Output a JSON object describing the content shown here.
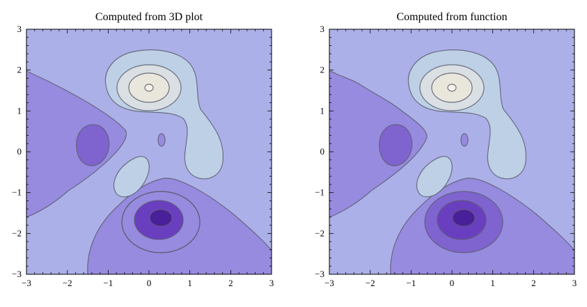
{
  "colors": {
    "level_1": "#4a1f9a",
    "level_2": "#6a3fbf",
    "level_3": "#7f64cf",
    "level_4": "#968bdf",
    "level_5": "#acb0e8",
    "level_6": "#bdd0e6",
    "level_7": "#e9e6dc",
    "line": "#5c5c6e",
    "frame": "#000000"
  },
  "chart_data": [
    {
      "type": "contour",
      "title": "Computed from 3D plot",
      "xlabel": "",
      "ylabel": "",
      "xlim": [
        -3,
        3
      ],
      "ylim": [
        -3,
        3
      ],
      "xticks": [
        -3,
        -2,
        -1,
        0,
        1,
        2,
        3
      ],
      "yticks": [
        -3,
        -2,
        -1,
        0,
        1,
        2,
        3
      ],
      "x_tick_labels": [
        "−3",
        "−2",
        "−1",
        "0",
        "1",
        "2",
        "3"
      ],
      "y_tick_labels": [
        "−3",
        "−2",
        "−1",
        "0",
        "1",
        "2",
        "3"
      ],
      "contour_levels": 6,
      "features": [
        {
          "kind": "maximum",
          "x": 0.0,
          "y": 1.58
        },
        {
          "kind": "minimum",
          "x": 0.3,
          "y": -1.65
        },
        {
          "kind": "local minimum",
          "x": -1.35,
          "y": 0.2
        },
        {
          "kind": "local minimum",
          "x": 0.3,
          "y": 0.3
        }
      ]
    },
    {
      "type": "contour",
      "title": "Computed from function",
      "xlabel": "",
      "ylabel": "",
      "xlim": [
        -3,
        3
      ],
      "ylim": [
        -3,
        3
      ],
      "xticks": [
        -3,
        -2,
        -1,
        0,
        1,
        2,
        3
      ],
      "yticks": [
        -3,
        -2,
        -1,
        0,
        1,
        2,
        3
      ],
      "x_tick_labels": [
        "−3",
        "−2",
        "−1",
        "0",
        "1",
        "2",
        "3"
      ],
      "y_tick_labels": [
        "−3",
        "−2",
        "−1",
        "0",
        "1",
        "2",
        "3"
      ],
      "contour_levels": 6,
      "features": [
        {
          "kind": "maximum",
          "x": 0.0,
          "y": 1.58
        },
        {
          "kind": "minimum",
          "x": 0.3,
          "y": -1.65
        },
        {
          "kind": "local minimum",
          "x": -1.35,
          "y": 0.2
        },
        {
          "kind": "local minimum",
          "x": 0.3,
          "y": 0.3
        }
      ]
    }
  ]
}
